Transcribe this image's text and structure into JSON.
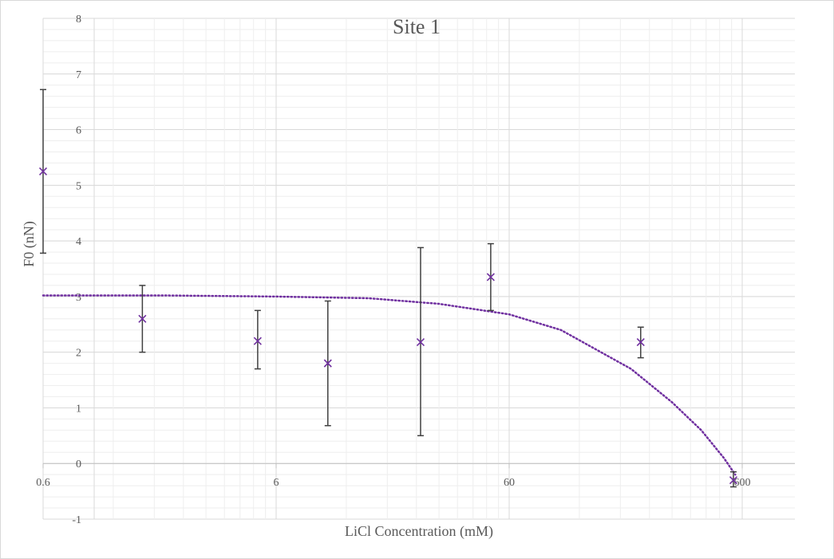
{
  "chart_data": {
    "type": "scatter",
    "title": "Site 1",
    "xlabel": "LiCl Concentration (mM)",
    "ylabel": "F0 (nN)",
    "x_scale": "log",
    "xlim": [
      0.6,
      1000
    ],
    "ylim": [
      -1,
      8
    ],
    "x_tick_labels": [
      "0.6",
      "6",
      "60",
      "600"
    ],
    "y_ticks": [
      -1,
      0,
      1,
      2,
      3,
      4,
      5,
      6,
      7,
      8
    ],
    "grid": true,
    "legend": "none",
    "series": [
      {
        "marker": "x",
        "color": "#7030a0",
        "points": [
          {
            "x": 0.6,
            "y": 5.25,
            "err_low": 3.78,
            "err_high": 6.72
          },
          {
            "x": 1.6,
            "y": 2.6,
            "err_low": 2.0,
            "err_high": 3.2
          },
          {
            "x": 5.0,
            "y": 2.2,
            "err_low": 1.7,
            "err_high": 2.75
          },
          {
            "x": 10.0,
            "y": 1.8,
            "err_low": 0.68,
            "err_high": 2.92
          },
          {
            "x": 25.0,
            "y": 2.18,
            "err_low": 0.5,
            "err_high": 3.88
          },
          {
            "x": 50.0,
            "y": 3.35,
            "err_low": 2.75,
            "err_high": 3.95
          },
          {
            "x": 220.0,
            "y": 2.18,
            "err_low": 1.9,
            "err_high": 2.45
          },
          {
            "x": 550.0,
            "y": -0.3,
            "err_low": -0.42,
            "err_high": -0.15
          }
        ]
      }
    ],
    "trendline": {
      "style": "dotted",
      "color": "#7030a0",
      "points": [
        {
          "x": 0.6,
          "y": 3.02
        },
        {
          "x": 2.0,
          "y": 3.02
        },
        {
          "x": 6.0,
          "y": 3.0
        },
        {
          "x": 15.0,
          "y": 2.97
        },
        {
          "x": 30.0,
          "y": 2.87
        },
        {
          "x": 60.0,
          "y": 2.68
        },
        {
          "x": 100.0,
          "y": 2.4
        },
        {
          "x": 200.0,
          "y": 1.7
        },
        {
          "x": 300.0,
          "y": 1.1
        },
        {
          "x": 400.0,
          "y": 0.6
        },
        {
          "x": 500.0,
          "y": 0.1
        },
        {
          "x": 560.0,
          "y": -0.2
        }
      ]
    }
  }
}
